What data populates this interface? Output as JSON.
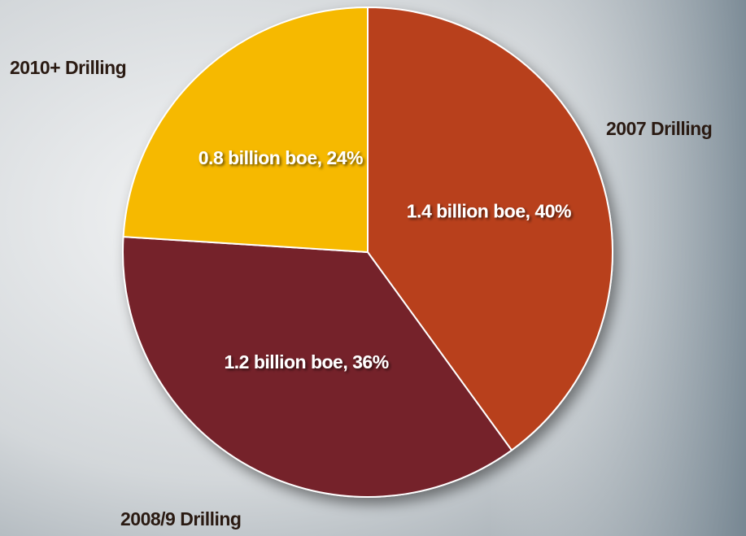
{
  "chart_data": {
    "type": "pie",
    "categories": [
      "2007 Drilling",
      "2008/9 Drilling",
      "2010+ Drilling"
    ],
    "values": [
      40,
      36,
      24
    ],
    "value_labels": [
      "1.4 billion boe, 40%",
      "1.2 billion boe, 36%",
      "0.8 billion boe, 24%"
    ],
    "colors": [
      "#b8411f",
      "#74202a",
      "#f6b900"
    ]
  }
}
